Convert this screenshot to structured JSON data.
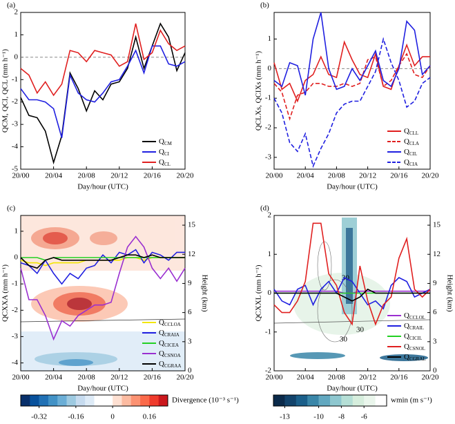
{
  "chart_data": [
    {
      "type": "line",
      "title": "(a)",
      "xlabel": "Day/hour (UTC)",
      "ylabel": "QCM, QCI, QCL (mm h⁻¹)",
      "x": [
        0,
        1,
        2,
        3,
        4,
        5,
        6,
        7,
        8,
        9,
        10,
        11,
        12,
        13,
        14,
        15,
        16,
        17,
        18,
        19,
        20
      ],
      "xlim": [
        0,
        20
      ],
      "xticks": [
        {
          "value": 0,
          "label": "20/00"
        },
        {
          "value": 4,
          "label": "20/04"
        },
        {
          "value": 8,
          "label": "20/08"
        },
        {
          "value": 12,
          "label": "20/12"
        },
        {
          "value": 16,
          "label": "20/16"
        },
        {
          "value": 20,
          "label": "20/20"
        }
      ],
      "ylim": [
        -5,
        2
      ],
      "yticks": [
        -5,
        -4,
        -3,
        -2,
        -1,
        0,
        1,
        2
      ],
      "reference_line": 0,
      "legend": "lower right",
      "series": [
        {
          "name": "QCM",
          "color": "#000000",
          "values": [
            -1.8,
            -2.6,
            -2.7,
            -3.3,
            -4.7,
            -3.5,
            -0.7,
            -1.4,
            -2.4,
            -1.5,
            -1.9,
            -1.2,
            -1.1,
            -0.5,
            0.9,
            -0.5,
            0.5,
            1.5,
            0.9,
            -0.6,
            0.2
          ]
        },
        {
          "name": "QCI",
          "color": "#1f1fe0",
          "values": [
            -1.4,
            -1.9,
            -1.9,
            -2.0,
            -2.3,
            -3.6,
            -0.8,
            -1.6,
            -1.9,
            -2.0,
            -1.6,
            -1.1,
            -1.0,
            -0.4,
            0.3,
            -0.7,
            0.5,
            0.5,
            -0.3,
            -0.4,
            -0.2
          ]
        },
        {
          "name": "QCL",
          "color": "#e01f1f",
          "values": [
            -0.5,
            -0.8,
            -1.6,
            -1.1,
            -1.7,
            -1.2,
            0.3,
            0.2,
            -0.2,
            0.3,
            0.2,
            0.1,
            -0.4,
            -0.2,
            1.5,
            -0.1,
            0.2,
            1.2,
            0.6,
            0.3,
            0.5
          ]
        }
      ]
    },
    {
      "type": "line",
      "title": "(b)",
      "xlabel": "Day/hour (UTC)",
      "ylabel": "QCLXs, QCIXs (mm h⁻¹)",
      "x": [
        0,
        1,
        2,
        3,
        4,
        5,
        6,
        7,
        8,
        9,
        10,
        11,
        12,
        13,
        14,
        15,
        16,
        17,
        18,
        19,
        20
      ],
      "xlim": [
        0,
        20
      ],
      "xticks": [
        {
          "value": 0,
          "label": "20/00"
        },
        {
          "value": 4,
          "label": "20/04"
        },
        {
          "value": 8,
          "label": "20/08"
        },
        {
          "value": 12,
          "label": "20/12"
        },
        {
          "value": 16,
          "label": "20/16"
        },
        {
          "value": 20,
          "label": "20/20"
        }
      ],
      "ylim": [
        -3.4,
        1.9
      ],
      "yticks": [
        -3,
        -2,
        -1,
        0,
        1
      ],
      "reference_line": 0,
      "legend": "lower right",
      "series": [
        {
          "name": "QCLL",
          "color": "#e01f1f",
          "dash": false,
          "values": [
            0.2,
            -0.7,
            -0.5,
            -1.1,
            -0.4,
            -0.2,
            0.4,
            -0.2,
            -0.3,
            0.9,
            0.3,
            -0.2,
            -0.3,
            0.5,
            -0.6,
            -0.7,
            0.1,
            0.8,
            0.1,
            0.4,
            0.4
          ]
        },
        {
          "name": "QCLA",
          "color": "#e01f1f",
          "dash": true,
          "values": [
            -0.5,
            -0.8,
            -1.7,
            -0.9,
            -0.8,
            -0.5,
            -0.5,
            -0.6,
            -0.6,
            -0.5,
            -0.6,
            -0.5,
            0.3,
            0.4,
            -0.6,
            -0.4,
            0.1,
            0.5,
            -0.2,
            -0.3,
            0.1
          ]
        },
        {
          "name": "QCIL",
          "color": "#1f1fe0",
          "dash": false,
          "values": [
            -0.4,
            -0.6,
            0.2,
            0.1,
            -0.9,
            1.0,
            1.9,
            0.0,
            -0.7,
            -0.6,
            0.0,
            -0.4,
            0.1,
            0.6,
            -0.4,
            -0.6,
            0.0,
            1.6,
            1.3,
            -0.2,
            0.1
          ]
        },
        {
          "name": "QCIA",
          "color": "#1f1fe0",
          "dash": true,
          "values": [
            -1.0,
            -1.5,
            -2.5,
            -2.8,
            -2.2,
            -3.3,
            -2.7,
            -2.2,
            -1.5,
            -1.2,
            -1.1,
            -1.1,
            -0.6,
            -0.1,
            1.0,
            0.2,
            -0.4,
            -1.3,
            -1.1,
            -0.5,
            -0.3
          ]
        }
      ]
    },
    {
      "type": "line",
      "title": "(c)",
      "xlabel": "Day/hour (UTC)",
      "ylabel": "QCXXA (mm h⁻¹)",
      "y2label": "Height (km)",
      "x": [
        0,
        1,
        2,
        3,
        4,
        5,
        6,
        7,
        8,
        9,
        10,
        11,
        12,
        13,
        14,
        15,
        16,
        17,
        18,
        19,
        20
      ],
      "xlim": [
        0,
        20
      ],
      "xticks": [
        {
          "value": 0,
          "label": "20/00"
        },
        {
          "value": 4,
          "label": "20/04"
        },
        {
          "value": 8,
          "label": "20/08"
        },
        {
          "value": 12,
          "label": "20/12"
        },
        {
          "value": 16,
          "label": "20/16"
        },
        {
          "value": 20,
          "label": "20/20"
        }
      ],
      "ylim": [
        -4.3,
        1.6
      ],
      "yticks": [
        -4,
        -3,
        -2,
        -1,
        0,
        1
      ],
      "y2lim": [
        0,
        16
      ],
      "y2ticks": [
        0,
        3,
        6,
        9,
        12,
        15
      ],
      "legend": "lower right",
      "series": [
        {
          "name": "QCCLOA",
          "color": "#f2e600",
          "values": [
            -0.1,
            -0.2,
            -0.2,
            -0.3,
            -0.2,
            -0.2,
            -0.2,
            -0.2,
            -0.1,
            -0.1,
            -0.1,
            -0.1,
            -0.1,
            0.0,
            0.0,
            -0.1,
            0.0,
            0.0,
            0.0,
            0.0,
            0.0
          ]
        },
        {
          "name": "QCRAIA",
          "color": "#1f1fe0",
          "values": [
            -0.2,
            -0.3,
            -0.6,
            -0.1,
            -0.6,
            -1.0,
            -0.6,
            -0.8,
            -0.4,
            -0.3,
            0.1,
            -0.2,
            0.2,
            0.1,
            0.3,
            -0.2,
            0.2,
            0.1,
            -0.1,
            0.2,
            0.2
          ]
        },
        {
          "name": "QCICEA",
          "color": "#22d022",
          "values": [
            0.0,
            0.0,
            0.0,
            -0.1,
            0.0,
            0.0,
            0.0,
            0.0,
            0.0,
            0.0,
            0.0,
            0.0,
            0.0,
            0.0,
            0.0,
            0.0,
            0.0,
            0.0,
            0.0,
            0.0,
            0.0
          ]
        },
        {
          "name": "QCSNOA",
          "color": "#9a2fd0",
          "values": [
            -0.4,
            -1.6,
            -1.6,
            -2.2,
            -3.1,
            -2.4,
            -2.6,
            -2.2,
            -2.0,
            -1.8,
            -1.8,
            -1.7,
            -0.6,
            0.4,
            0.8,
            0.4,
            -0.4,
            -0.8,
            -0.4,
            -0.9,
            -0.4
          ]
        },
        {
          "name": "QCGRAA",
          "color": "#000000",
          "values": [
            0.0,
            -0.3,
            -0.4,
            -0.1,
            0.0,
            -0.1,
            -0.1,
            -0.1,
            -0.1,
            -0.1,
            -0.1,
            -0.1,
            0.0,
            0.1,
            0.1,
            0.0,
            0.1,
            0.0,
            0.0,
            0.0,
            0.0
          ]
        }
      ]
    },
    {
      "type": "line",
      "title": "(d)",
      "xlabel": "Day/hour (UTC)",
      "ylabel": "QCXXL (mm h⁻¹)",
      "y2label": "Height (km)",
      "x": [
        0,
        1,
        2,
        3,
        4,
        5,
        6,
        7,
        8,
        9,
        10,
        11,
        12,
        13,
        14,
        15,
        16,
        17,
        18,
        19,
        20
      ],
      "xlim": [
        0,
        20
      ],
      "xticks": [
        {
          "value": 0,
          "label": "20/00"
        },
        {
          "value": 4,
          "label": "20/04"
        },
        {
          "value": 8,
          "label": "20/08"
        },
        {
          "value": 12,
          "label": "20/12"
        },
        {
          "value": 16,
          "label": "20/16"
        },
        {
          "value": 20,
          "label": "20/20"
        }
      ],
      "ylim": [
        -2,
        2
      ],
      "yticks": [
        -2,
        -1,
        0,
        1,
        2
      ],
      "y2lim": [
        0,
        16
      ],
      "y2ticks": [
        0,
        3,
        6,
        9,
        12,
        15
      ],
      "legend": "right",
      "annotations": [
        "30",
        "30",
        "30"
      ],
      "series": [
        {
          "name": "QCCLOL",
          "color": "#9a2fd0",
          "values": [
            0.05,
            0.05,
            0.05,
            0.05,
            0.05,
            0.05,
            0.05,
            0.05,
            0.05,
            0.0,
            0.0,
            0.05,
            0.05,
            0.05,
            0.05,
            0.05,
            0.05,
            0.05,
            0.05,
            0.05,
            0.05
          ]
        },
        {
          "name": "QCRAIL",
          "color": "#1f1fe0",
          "values": [
            0.1,
            -0.2,
            -0.3,
            0.1,
            0.2,
            -0.3,
            0.1,
            0.3,
            0.0,
            0.4,
            0.3,
            0.0,
            -0.3,
            -0.2,
            -0.4,
            0.2,
            0.4,
            0.3,
            -0.1,
            0.0,
            0.1
          ]
        },
        {
          "name": "QCICIL",
          "color": "#22d022",
          "values": [
            0.0,
            0.0,
            0.0,
            0.0,
            0.0,
            0.0,
            0.0,
            0.0,
            0.0,
            0.0,
            0.0,
            0.0,
            0.0,
            0.0,
            0.0,
            0.0,
            0.0,
            0.0,
            0.0,
            0.0,
            0.0
          ]
        },
        {
          "name": "QCSNOL",
          "color": "#e01f1f",
          "values": [
            -0.3,
            -0.5,
            -0.5,
            -0.2,
            0.3,
            1.8,
            1.8,
            0.5,
            0.2,
            -0.5,
            -0.8,
            0.7,
            -0.2,
            -0.8,
            -0.3,
            -0.1,
            0.9,
            1.4,
            0.1,
            -0.1,
            0.1
          ]
        },
        {
          "name": "QCGRAL",
          "color": "#000000",
          "values": [
            0.0,
            0.0,
            0.0,
            0.0,
            0.0,
            0.0,
            0.0,
            0.0,
            0.0,
            -0.1,
            -0.2,
            -0.1,
            0.1,
            0.0,
            0.0,
            0.0,
            0.0,
            0.0,
            0.0,
            0.0,
            0.0
          ]
        }
      ]
    },
    {
      "type": "colorbar",
      "label": "Divergence (10⁻³ s⁻¹)",
      "xlim": [
        -0.4,
        0.24
      ],
      "colors": [
        "#08306b",
        "#08519c",
        "#2171b5",
        "#4292c6",
        "#6baed6",
        "#9ecae1",
        "#c6dbef",
        "#deebf7",
        "#ffffff",
        "#ffffff",
        "#fee0d2",
        "#fcbba1",
        "#fc9272",
        "#fb6a4a",
        "#ef3b2c",
        "#cb181d"
      ],
      "xticks": [
        -0.32,
        -0.16,
        0,
        0.16
      ]
    },
    {
      "type": "colorbar",
      "label": "wmin (m s⁻¹)",
      "xlim": [
        -14,
        -4
      ],
      "colors": [
        "#0b2a4a",
        "#12436b",
        "#1b5f8a",
        "#3a86a8",
        "#62a8c0",
        "#8ec7cf",
        "#b5dfd6",
        "#d6eedd",
        "#eaf6ec",
        "#ffffff"
      ],
      "xticks": [
        -13,
        -10,
        -8,
        -6
      ]
    }
  ]
}
